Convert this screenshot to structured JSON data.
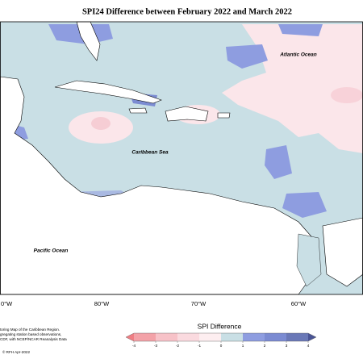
{
  "title": "SPI24 Difference between February 2022 and March 2022",
  "map": {
    "ocean_labels": [
      "Atlantic Ocean",
      "Caribbean Sea",
      "Pacific Ocean"
    ],
    "longitude_labels": [
      "0°W",
      "80°W",
      "70°W",
      "60°W"
    ]
  },
  "legend": {
    "title": "SPI Difference",
    "ticks": [
      -4,
      -3,
      -2,
      -1,
      0,
      1,
      2,
      3,
      4
    ],
    "colors": [
      "#ef7e84",
      "#f3a2a8",
      "#f7c2c8",
      "#fadadf",
      "#fdeef0",
      "#c9dfe5",
      "#8e9de0",
      "#7b8bd2",
      "#6a78b7",
      "#4a5494"
    ]
  },
  "notes": [
    "toring Map of the Caribbean Region.",
    "gregating station based observations,",
    "CDF, with NCEP/NCAR Reanalysis Data"
  ],
  "copyright": "© RFH Apr-2022"
}
